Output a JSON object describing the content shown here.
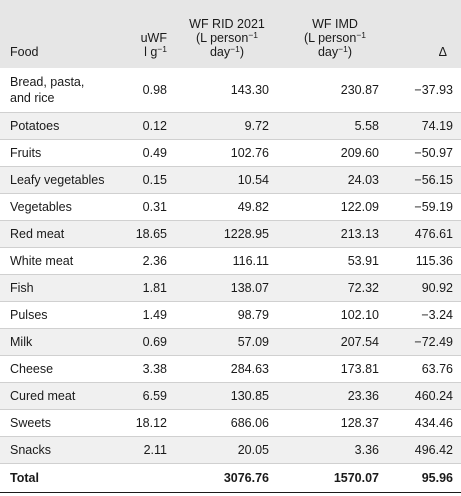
{
  "header": {
    "food": "Food",
    "uwf_line1": "uWF",
    "uwf_unit_l": "l g",
    "uwf_unit_sup": "−1",
    "rid_line1": "WF RID 2021",
    "rid_line2_a": "(L person",
    "rid_line2_sup": "−1",
    "rid_line3_a": "day",
    "rid_line3_sup": "−1",
    "rid_line3_b": ")",
    "imd_line1": "WF IMD",
    "imd_line2_a": "(L person",
    "imd_line2_sup": "−1",
    "imd_line3_a": "day",
    "imd_line3_sup": "−1",
    "imd_line3_b": ")",
    "delta": "Δ"
  },
  "rows": [
    {
      "food_a": "Bread, pasta,",
      "food_b": "and rice",
      "uwf": "0.98",
      "rid": "143.30",
      "imd": "230.87",
      "delta": "−37.93"
    },
    {
      "food": "Potatoes",
      "uwf": "0.12",
      "rid": "9.72",
      "imd": "5.58",
      "delta": "74.19"
    },
    {
      "food": "Fruits",
      "uwf": "0.49",
      "rid": "102.76",
      "imd": "209.60",
      "delta": "−50.97"
    },
    {
      "food": "Leafy vegetables",
      "uwf": "0.15",
      "rid": "10.54",
      "imd": "24.03",
      "delta": "−56.15"
    },
    {
      "food": "Vegetables",
      "uwf": "0.31",
      "rid": "49.82",
      "imd": "122.09",
      "delta": "−59.19"
    },
    {
      "food": "Red meat",
      "uwf": "18.65",
      "rid": "1228.95",
      "imd": "213.13",
      "delta": "476.61"
    },
    {
      "food": "White meat",
      "uwf": "2.36",
      "rid": "116.11",
      "imd": "53.91",
      "delta": "115.36"
    },
    {
      "food": "Fish",
      "uwf": "1.81",
      "rid": "138.07",
      "imd": "72.32",
      "delta": "90.92"
    },
    {
      "food": "Pulses",
      "uwf": "1.49",
      "rid": "98.79",
      "imd": "102.10",
      "delta": "−3.24"
    },
    {
      "food": "Milk",
      "uwf": "0.69",
      "rid": "57.09",
      "imd": "207.54",
      "delta": "−72.49"
    },
    {
      "food": "Cheese",
      "uwf": "3.38",
      "rid": "284.63",
      "imd": "173.81",
      "delta": "63.76"
    },
    {
      "food": "Cured meat",
      "uwf": "6.59",
      "rid": "130.85",
      "imd": "23.36",
      "delta": "460.24"
    },
    {
      "food": "Sweets",
      "uwf": "18.12",
      "rid": "686.06",
      "imd": "128.37",
      "delta": "434.46"
    },
    {
      "food": "Snacks",
      "uwf": "2.11",
      "rid": "20.05",
      "imd": "3.36",
      "delta": "496.42"
    }
  ],
  "total": {
    "food": "Total",
    "uwf": "",
    "rid": "3076.76",
    "imd": "1570.07",
    "delta": "95.96"
  }
}
